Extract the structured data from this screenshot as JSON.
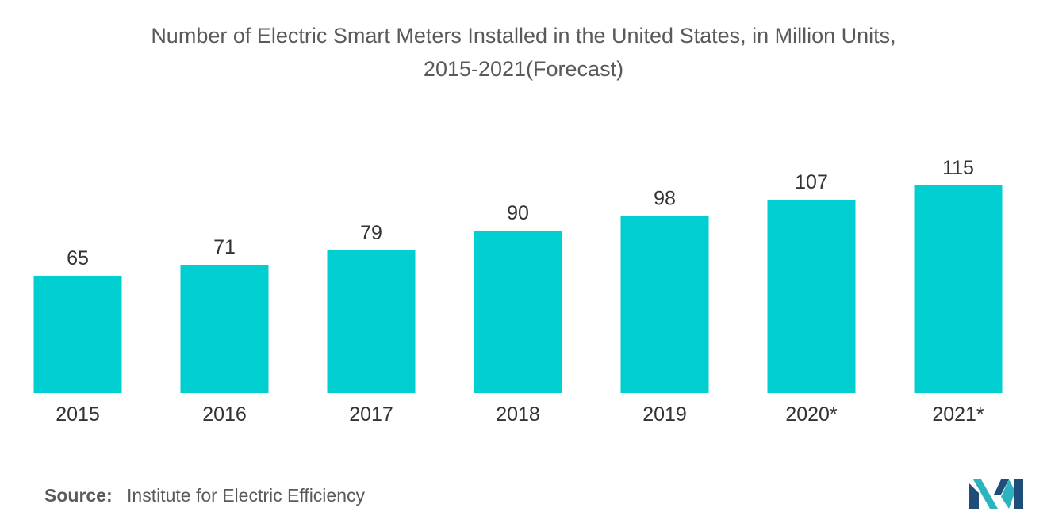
{
  "chart_data": {
    "type": "bar",
    "title": "Number of Electric Smart Meters Installed in the United States, in Million Units,",
    "subtitle": "2015-2021(Forecast)",
    "categories": [
      "2015",
      "2016",
      "2017",
      "2018",
      "2019",
      "2020*",
      "2021*"
    ],
    "values": [
      65,
      71,
      79,
      90,
      98,
      107,
      115
    ],
    "data_labels": [
      "65",
      "71",
      "79",
      "90",
      "98",
      "107",
      "115"
    ],
    "xlabel": "",
    "ylabel": "",
    "ylim": [
      0,
      115
    ],
    "grid": false,
    "legend": "none",
    "bar_color": "#00CED1"
  },
  "source": {
    "label": "Source:",
    "text": "Institute for Electric Efficiency"
  },
  "logo": {
    "icon": "mordor-logo-icon",
    "colors": [
      "#1F4E79",
      "#2BB3C0"
    ]
  }
}
